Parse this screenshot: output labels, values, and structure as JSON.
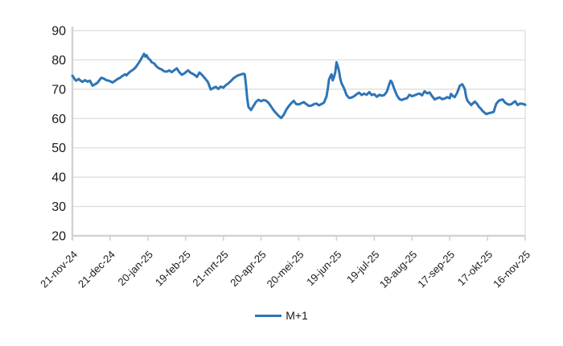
{
  "colors": {
    "background": "#FFFFFF",
    "series_blue": "#2E75B6",
    "gridline": "#DBDBDB",
    "axis": "#D2D2D2",
    "tick_label": "#1A1A1A"
  },
  "legend": {
    "items": [
      {
        "label": "M+1",
        "color": "#2E75B6"
      }
    ]
  },
  "chart_data": {
    "type": "line",
    "title": "",
    "xlabel": "",
    "ylabel": "",
    "ylim": [
      20,
      90
    ],
    "y_ticks": [
      20,
      30,
      40,
      50,
      60,
      70,
      80,
      90
    ],
    "x_range_days": [
      0,
      360
    ],
    "x_ticks": [
      {
        "pos": 0,
        "label": "21-nov-24"
      },
      {
        "pos": 30,
        "label": "21-dec-24"
      },
      {
        "pos": 60,
        "label": "20-jan-25"
      },
      {
        "pos": 90,
        "label": "19-feb-25"
      },
      {
        "pos": 120,
        "label": "21-mrt-25"
      },
      {
        "pos": 150,
        "label": "20-apr-25"
      },
      {
        "pos": 180,
        "label": "20-mei-25"
      },
      {
        "pos": 210,
        "label": "19-jun-25"
      },
      {
        "pos": 240,
        "label": "19-jul-25"
      },
      {
        "pos": 270,
        "label": "18-aug-25"
      },
      {
        "pos": 300,
        "label": "17-sep-25"
      },
      {
        "pos": 330,
        "label": "17-okt-25"
      },
      {
        "pos": 360,
        "label": "16-nov-25"
      }
    ],
    "grid": "horizontal-major",
    "legend_position": "bottom-center",
    "series": [
      {
        "name": "M+1",
        "color": "#2E75B6",
        "points": [
          [
            0,
            74.6
          ],
          [
            1,
            74.0
          ],
          [
            2,
            73.3
          ],
          [
            3,
            72.9
          ],
          [
            4,
            73.2
          ],
          [
            5,
            73.5
          ],
          [
            6,
            73.1
          ],
          [
            8,
            72.5
          ],
          [
            10,
            73.1
          ],
          [
            12,
            72.6
          ],
          [
            14,
            72.9
          ],
          [
            16,
            71.2
          ],
          [
            18,
            71.7
          ],
          [
            20,
            72.2
          ],
          [
            22,
            73.4
          ],
          [
            23,
            73.9
          ],
          [
            25,
            73.6
          ],
          [
            27,
            73.1
          ],
          [
            29,
            72.9
          ],
          [
            30,
            72.7
          ],
          [
            32,
            72.3
          ],
          [
            34,
            72.9
          ],
          [
            36,
            73.5
          ],
          [
            38,
            73.9
          ],
          [
            40,
            74.6
          ],
          [
            42,
            75.1
          ],
          [
            43,
            74.7
          ],
          [
            44,
            75.2
          ],
          [
            46,
            76.0
          ],
          [
            48,
            76.6
          ],
          [
            50,
            77.3
          ],
          [
            52,
            78.5
          ],
          [
            54,
            79.8
          ],
          [
            55,
            80.6
          ],
          [
            56,
            81.3
          ],
          [
            57,
            82.1
          ],
          [
            58,
            81.1
          ],
          [
            59,
            81.6
          ],
          [
            60,
            80.7
          ],
          [
            62,
            79.9
          ],
          [
            63,
            79.2
          ],
          [
            65,
            78.8
          ],
          [
            67,
            77.7
          ],
          [
            69,
            77.1
          ],
          [
            71,
            76.7
          ],
          [
            73,
            76.1
          ],
          [
            75,
            76.0
          ],
          [
            77,
            76.4
          ],
          [
            79,
            75.8
          ],
          [
            81,
            76.5
          ],
          [
            83,
            77.1
          ],
          [
            85,
            75.8
          ],
          [
            87,
            74.9
          ],
          [
            89,
            75.4
          ],
          [
            91,
            76.1
          ],
          [
            92,
            76.4
          ],
          [
            94,
            75.6
          ],
          [
            96,
            75.2
          ],
          [
            98,
            74.6
          ],
          [
            99,
            74.2
          ],
          [
            101,
            75.7
          ],
          [
            103,
            74.9
          ],
          [
            105,
            73.9
          ],
          [
            107,
            72.9
          ],
          [
            108,
            72.2
          ],
          [
            110,
            69.9
          ],
          [
            112,
            70.4
          ],
          [
            114,
            70.8
          ],
          [
            116,
            70.1
          ],
          [
            118,
            70.9
          ],
          [
            120,
            70.5
          ],
          [
            122,
            71.4
          ],
          [
            124,
            72.0
          ],
          [
            126,
            72.8
          ],
          [
            128,
            73.7
          ],
          [
            130,
            74.3
          ],
          [
            132,
            74.8
          ],
          [
            134,
            75.0
          ],
          [
            136,
            75.3
          ],
          [
            137,
            75.1
          ],
          [
            138,
            71.5
          ],
          [
            139,
            66.8
          ],
          [
            140,
            64.0
          ],
          [
            141,
            63.4
          ],
          [
            142,
            62.9
          ],
          [
            144,
            64.3
          ],
          [
            146,
            65.7
          ],
          [
            148,
            66.4
          ],
          [
            150,
            65.9
          ],
          [
            152,
            66.3
          ],
          [
            154,
            66.1
          ],
          [
            156,
            65.3
          ],
          [
            158,
            64.1
          ],
          [
            160,
            62.8
          ],
          [
            162,
            61.8
          ],
          [
            164,
            60.9
          ],
          [
            166,
            60.2
          ],
          [
            168,
            61.2
          ],
          [
            170,
            63.0
          ],
          [
            172,
            64.2
          ],
          [
            174,
            65.2
          ],
          [
            176,
            66.0
          ],
          [
            178,
            64.9
          ],
          [
            180,
            64.8
          ],
          [
            182,
            65.2
          ],
          [
            184,
            65.6
          ],
          [
            186,
            64.9
          ],
          [
            188,
            64.3
          ],
          [
            190,
            64.4
          ],
          [
            192,
            64.9
          ],
          [
            194,
            65.1
          ],
          [
            196,
            64.5
          ],
          [
            198,
            64.9
          ],
          [
            200,
            65.4
          ],
          [
            202,
            67.5
          ],
          [
            203,
            70.0
          ],
          [
            204,
            73.2
          ],
          [
            205,
            74.3
          ],
          [
            206,
            75.1
          ],
          [
            207,
            73.0
          ],
          [
            208,
            74.2
          ],
          [
            209,
            75.8
          ],
          [
            210,
            79.2
          ],
          [
            211,
            77.8
          ],
          [
            212,
            76.2
          ],
          [
            213,
            73.5
          ],
          [
            214,
            72.0
          ],
          [
            216,
            70.3
          ],
          [
            218,
            68.0
          ],
          [
            220,
            67.0
          ],
          [
            222,
            67.2
          ],
          [
            224,
            67.6
          ],
          [
            226,
            68.3
          ],
          [
            228,
            68.8
          ],
          [
            230,
            68.0
          ],
          [
            232,
            68.5
          ],
          [
            234,
            68.1
          ],
          [
            236,
            69.0
          ],
          [
            238,
            68.0
          ],
          [
            240,
            68.3
          ],
          [
            242,
            67.4
          ],
          [
            244,
            68.1
          ],
          [
            246,
            67.8
          ],
          [
            248,
            68.0
          ],
          [
            250,
            69.2
          ],
          [
            252,
            71.8
          ],
          [
            253,
            72.9
          ],
          [
            254,
            72.4
          ],
          [
            256,
            70.0
          ],
          [
            258,
            67.9
          ],
          [
            260,
            66.6
          ],
          [
            262,
            66.3
          ],
          [
            264,
            66.7
          ],
          [
            266,
            66.9
          ],
          [
            268,
            68.1
          ],
          [
            270,
            67.6
          ],
          [
            272,
            67.9
          ],
          [
            274,
            68.3
          ],
          [
            276,
            68.5
          ],
          [
            278,
            67.9
          ],
          [
            280,
            69.3
          ],
          [
            282,
            68.6
          ],
          [
            284,
            68.9
          ],
          [
            286,
            67.6
          ],
          [
            288,
            66.5
          ],
          [
            290,
            66.9
          ],
          [
            292,
            67.2
          ],
          [
            294,
            66.6
          ],
          [
            296,
            66.8
          ],
          [
            298,
            67.3
          ],
          [
            300,
            66.9
          ],
          [
            301,
            68.4
          ],
          [
            302,
            67.9
          ],
          [
            303,
            67.5
          ],
          [
            304,
            67.3
          ],
          [
            306,
            68.8
          ],
          [
            308,
            71.2
          ],
          [
            310,
            71.7
          ],
          [
            312,
            70.1
          ],
          [
            313,
            67.5
          ],
          [
            314,
            66.1
          ],
          [
            316,
            65.1
          ],
          [
            317,
            64.6
          ],
          [
            319,
            65.4
          ],
          [
            320,
            65.8
          ],
          [
            322,
            64.8
          ],
          [
            323,
            64.1
          ],
          [
            325,
            63.2
          ],
          [
            326,
            62.6
          ],
          [
            328,
            61.9
          ],
          [
            329,
            61.5
          ],
          [
            331,
            61.8
          ],
          [
            333,
            62.0
          ],
          [
            335,
            62.3
          ],
          [
            336,
            63.8
          ],
          [
            337,
            65.0
          ],
          [
            339,
            66.1
          ],
          [
            341,
            66.4
          ],
          [
            342,
            66.5
          ],
          [
            344,
            65.4
          ],
          [
            346,
            64.9
          ],
          [
            347,
            64.7
          ],
          [
            349,
            64.9
          ],
          [
            351,
            65.6
          ],
          [
            352,
            65.9
          ],
          [
            354,
            64.6
          ],
          [
            356,
            65.1
          ],
          [
            358,
            65.0
          ],
          [
            360,
            64.7
          ]
        ]
      }
    ]
  }
}
